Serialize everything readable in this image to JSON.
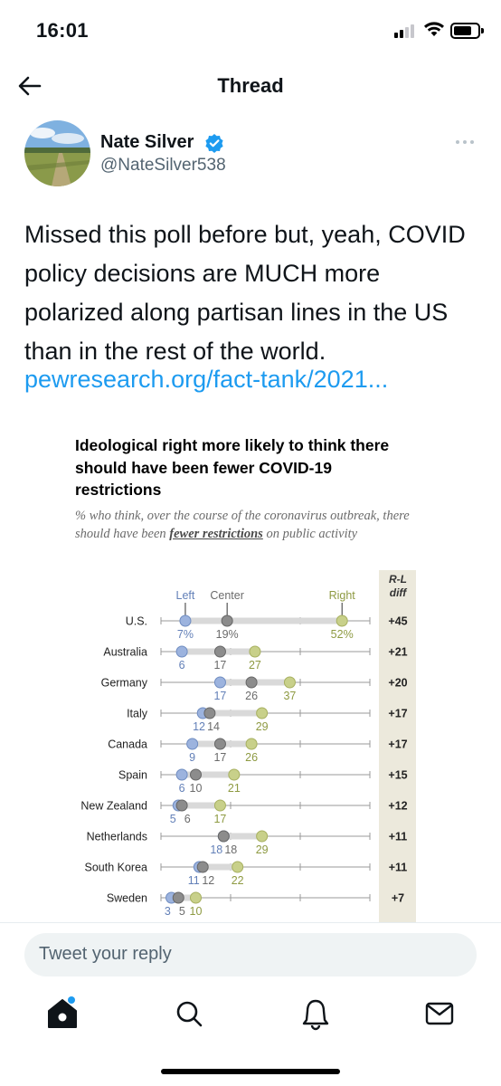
{
  "status_bar": {
    "time": "16:01",
    "signal_bars": 2,
    "battery_level": 0.75
  },
  "header": {
    "title": "Thread"
  },
  "tweet": {
    "author_name": "Nate Silver",
    "author_handle": "@NateSilver538",
    "text": "Missed this poll before but, yeah, COVID policy decisions are MUCH more polarized along partisan lines in the US than in the rest of the world.",
    "link": "pewresearch.org/fact-tank/2021..."
  },
  "chart_data": {
    "type": "dot",
    "title": "Ideological right more likely to think there should have been fewer COVID-19 restrictions",
    "subtitle_before": "% who think, over the course of the coronavirus outbreak, there should have been ",
    "subtitle_emphasis": "fewer restrictions",
    "subtitle_after": " on public activity",
    "xlim": [
      0,
      60
    ],
    "grid": false,
    "diff_header": "R-L diff",
    "series": [
      {
        "name": "Left",
        "color": "#9cb3de",
        "stroke": "#6f8cc0",
        "values": [
          7,
          6,
          17,
          12,
          9,
          6,
          5,
          18,
          11,
          3
        ]
      },
      {
        "name": "Center",
        "color": "#8c8c8c",
        "stroke": "#666666",
        "values": [
          19,
          17,
          26,
          14,
          17,
          10,
          6,
          18,
          12,
          5
        ]
      },
      {
        "name": "Right",
        "color": "#c8d08a",
        "stroke": "#a7b060",
        "values": [
          52,
          27,
          37,
          29,
          26,
          21,
          17,
          29,
          22,
          10
        ]
      }
    ],
    "categories": [
      "U.S.",
      "Australia",
      "Germany",
      "Italy",
      "Canada",
      "Spain",
      "New Zealand",
      "Netherlands",
      "South Korea",
      "Sweden"
    ],
    "diff": [
      "+45",
      "+21",
      "+20",
      "+17",
      "+17",
      "+15",
      "+12",
      "+11",
      "+11",
      "+7"
    ],
    "us_labels": [
      "7%",
      "19%",
      "52%"
    ],
    "label_colors": {
      "left": "#6380b8",
      "center": "#6b6b6b",
      "right": "#8e9a42"
    }
  },
  "reply": {
    "placeholder": "Tweet your reply"
  },
  "tabs": [
    "home-icon",
    "search-icon",
    "notifications-icon",
    "messages-icon"
  ]
}
